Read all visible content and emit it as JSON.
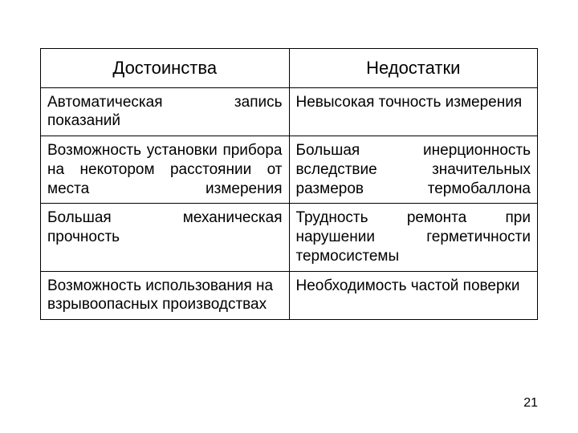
{
  "page_number": "21",
  "table": {
    "type": "table",
    "border_color": "#000000",
    "background_color": "#ffffff",
    "text_color": "#000000",
    "header_fontsize": 22,
    "cell_fontsize": 19,
    "columns": [
      {
        "key": "pros",
        "label": "Достоинства"
      },
      {
        "key": "cons",
        "label": "Недостатки"
      }
    ],
    "rows": [
      {
        "pros": "Автоматическая запись показаний",
        "pros_align": "justify",
        "cons": "Невысокая точность измерения",
        "cons_align": "left"
      },
      {
        "pros": "Возможность установки прибора на некотором расстоянии от места измерения",
        "pros_align": "justify",
        "cons": "Большая инерционность вследствие значительных размеров термобаллона",
        "cons_align": "justify"
      },
      {
        "pros": "Большая механическая прочность",
        "pros_align": "justify",
        "cons": "Трудность ремонта при нарушении герметичности термосистемы",
        "cons_align": "justify"
      },
      {
        "pros": "Возможность использования на взрывоопасных производствах",
        "pros_align": "left",
        "cons": "Необходимость частой поверки",
        "cons_align": "left"
      }
    ]
  }
}
